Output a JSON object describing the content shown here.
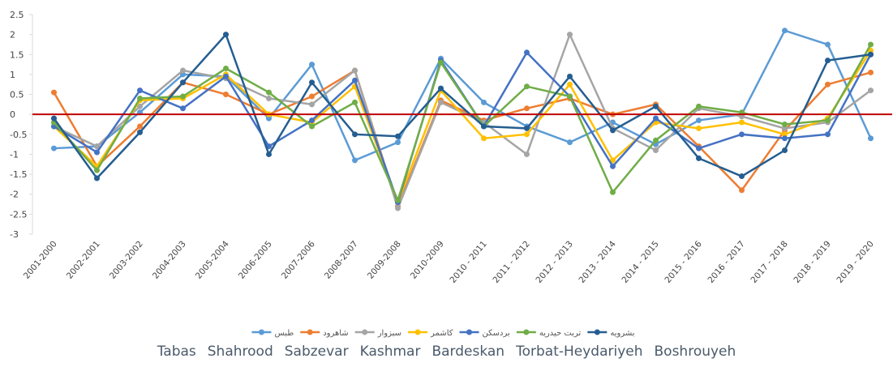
{
  "chart_data": {
    "type": "line",
    "categories": [
      "2001-2000",
      "2002-2001",
      "2003-2002",
      "2004-2003",
      "2005-2004",
      "2006-2005",
      "2007-2006",
      "2008-2007",
      "2009-2008",
      "2010-2009",
      "2010 - 2011",
      "2011 - 2012",
      "2012 - 2013",
      "2013 - 2014",
      "2014 - 2015",
      "2015 - 2016",
      "2016 - 2017",
      "2017 - 2018",
      "2018 - 2019",
      "2019 - 2020"
    ],
    "series": [
      {
        "name": "طبس",
        "color": "#5b9bd5",
        "values": [
          -0.85,
          -0.8,
          0.05,
          1.0,
          0.95,
          -0.1,
          1.25,
          -1.15,
          -0.7,
          1.4,
          0.3,
          -0.3,
          -0.7,
          -0.2,
          -0.75,
          -0.15,
          0.0,
          2.1,
          1.75,
          -0.6
        ]
      },
      {
        "name": "شاهرود",
        "color": "#ed7d31",
        "values": [
          0.55,
          -1.3,
          -0.3,
          0.8,
          0.5,
          0.0,
          0.45,
          1.1,
          -2.3,
          0.35,
          -0.15,
          0.15,
          0.4,
          0.0,
          0.25,
          -0.8,
          -1.9,
          -0.4,
          0.75,
          1.05
        ]
      },
      {
        "name": "سبزوار",
        "color": "#a5a5a5",
        "values": [
          -0.3,
          -0.8,
          0.2,
          1.1,
          0.9,
          0.4,
          0.25,
          1.1,
          -2.35,
          0.3,
          -0.2,
          -1.0,
          2.0,
          -0.35,
          -0.9,
          0.15,
          -0.05,
          -0.35,
          -0.2,
          0.6
        ]
      },
      {
        "name": "کاشمر",
        "color": "#ffc000",
        "values": [
          -0.3,
          -1.3,
          0.35,
          0.4,
          1.0,
          0.0,
          -0.2,
          0.7,
          -2.2,
          0.6,
          -0.6,
          -0.5,
          0.75,
          -1.15,
          -0.2,
          -0.35,
          -0.2,
          -0.5,
          -0.1,
          1.6
        ]
      },
      {
        "name": "بردسکن",
        "color": "#4472c4",
        "values": [
          -0.3,
          -0.95,
          0.6,
          0.15,
          0.95,
          -0.8,
          -0.15,
          0.85,
          -2.2,
          1.35,
          -0.3,
          1.55,
          0.45,
          -1.3,
          -0.1,
          -0.85,
          -0.5,
          -0.6,
          -0.5,
          1.5
        ]
      },
      {
        "name": "تربت حیدریه",
        "color": "#70ad47",
        "values": [
          -0.2,
          -1.4,
          0.4,
          0.45,
          1.15,
          0.55,
          -0.3,
          0.3,
          -2.15,
          1.3,
          -0.3,
          0.7,
          0.45,
          -1.95,
          -0.65,
          0.2,
          0.05,
          -0.25,
          -0.15,
          1.75
        ]
      },
      {
        "name": "بشرویه",
        "color": "#255e91",
        "values": [
          -0.1,
          -1.6,
          -0.45,
          0.8,
          2.0,
          -1.0,
          0.8,
          -0.5,
          -0.55,
          0.65,
          -0.3,
          -0.35,
          0.95,
          -0.4,
          0.2,
          -1.1,
          -1.55,
          -0.9,
          1.35,
          1.5
        ]
      }
    ],
    "legend_translation": [
      "Tabas",
      "Shahrood",
      "Sabzevar",
      "Kashmar",
      "Bardeskan",
      "Torbat-Heydariyeh",
      "Boshrouyeh"
    ],
    "ylim": [
      -3,
      2.5
    ],
    "yticks": [
      -3,
      -2.5,
      -2,
      -1.5,
      -1,
      -0.5,
      0,
      0.5,
      1,
      1.5,
      2,
      2.5
    ],
    "zero_line_color": "#c00000",
    "grid": false
  }
}
